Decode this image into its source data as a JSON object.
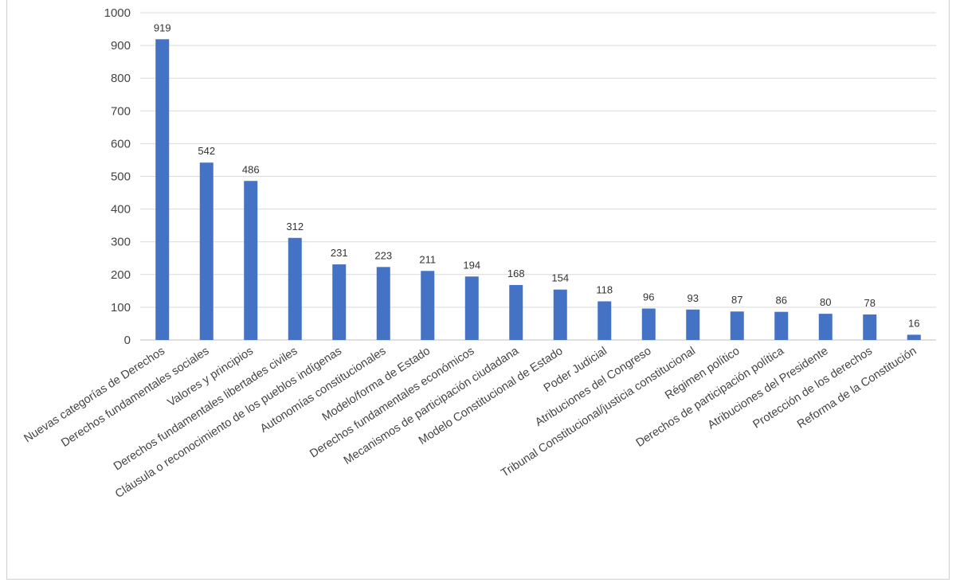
{
  "chart_data": {
    "type": "bar",
    "title": "",
    "xlabel": "",
    "ylabel": "",
    "ylim": [
      0,
      1000
    ],
    "yticks": [
      0,
      100,
      200,
      300,
      400,
      500,
      600,
      700,
      800,
      900,
      1000
    ],
    "grid": true,
    "legend": "none",
    "bar_color": "#4472C4",
    "categories": [
      "Nuevas categorías de Derechos",
      "Derechos fundamentales sociales",
      "Valores y principios",
      "Derechos fundamentales libertades civiles",
      "Cláusula o reconocimiento de los pueblos indígenas",
      "Autonomías constitucionales",
      "Modelo/forma de Estado",
      "Derechos fundamentales económicos",
      "Mecanismos de participación ciudadana",
      "Modelo Constitucional de Estado",
      "Poder Judicial",
      "Atribuciones del Congreso",
      "Tribunal Constitucional/justicia constitucional",
      "Régimen político",
      "Derechos de participación política",
      "Atribuciones del Presidente",
      "Protección de los derechos",
      "Reforma de la Constitución"
    ],
    "values": [
      919,
      542,
      486,
      312,
      231,
      223,
      211,
      194,
      168,
      154,
      118,
      96,
      93,
      87,
      86,
      80,
      78,
      16
    ]
  }
}
